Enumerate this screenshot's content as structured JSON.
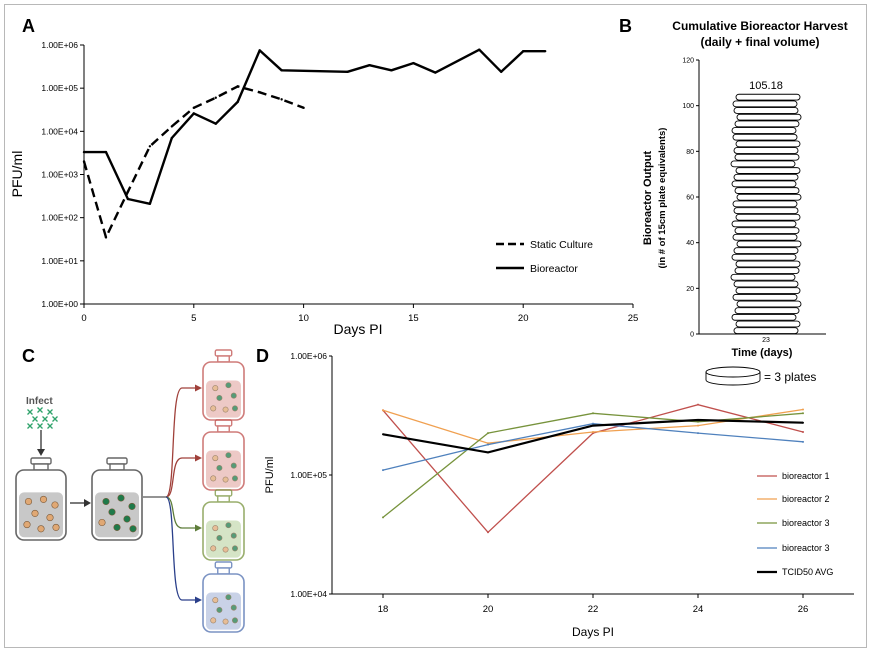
{
  "panels": {
    "a": {
      "letter": "A"
    },
    "b": {
      "letter": "B"
    },
    "c": {
      "letter": "C",
      "infect_label": "Infect"
    },
    "d": {
      "letter": "D"
    }
  },
  "colors": {
    "bioreactor_1": "#c0504d",
    "bioreactor_2": "#f0a050",
    "bioreactor_3_green": "#77933c",
    "bioreactor_3_blue": "#4f81bd",
    "tcid50_avg": "#000000",
    "cell_orange": "#e0a874",
    "cell_green": "#1e7a4a"
  },
  "chart_data": [
    {
      "type": "line",
      "panel": "A",
      "xlabel": "Days PI",
      "ylabel": "PFU/ml",
      "xlim": [
        0,
        25
      ],
      "x_ticks": [
        "0",
        "5",
        "10",
        "15",
        "20",
        "25"
      ],
      "y_scale": "log",
      "ylim": [
        1,
        1000000
      ],
      "y_ticks": [
        "1.00E+00",
        "1.00E+01",
        "1.00E+02",
        "1.00E+03",
        "1.00E+04",
        "1.00E+05",
        "1.00E+06"
      ],
      "legend_position": "bottom-right",
      "series": [
        {
          "name": "Static Culture",
          "style": "dashed",
          "x": [
            0,
            1,
            2,
            3,
            4,
            5,
            6,
            7,
            8,
            9,
            10
          ],
          "y": [
            2000,
            35,
            400,
            4500,
            13000,
            35000,
            60000,
            110000,
            80000,
            55000,
            35000
          ]
        },
        {
          "name": "Bioreactor",
          "style": "solid",
          "x": [
            0,
            1,
            2,
            3,
            4,
            5,
            6,
            7,
            8,
            9,
            12,
            13,
            14,
            15,
            16,
            18,
            19,
            20,
            21
          ],
          "y": [
            3300,
            3300,
            270,
            210,
            7000,
            26000,
            15000,
            48000,
            750000,
            260000,
            240000,
            340000,
            260000,
            380000,
            230000,
            780000,
            240000,
            720000,
            720000
          ]
        }
      ]
    },
    {
      "type": "bar",
      "panel": "B",
      "title": "Cumulative Bioreactor Harvest",
      "subtitle": "(daily + final volume)",
      "xlabel": "Time (days)",
      "ylabel": "Bioreactor Output",
      "ylabel2": "(in # of 15cm plate equivalents)",
      "categories": [
        "23"
      ],
      "values": [
        105.18
      ],
      "value_label": "105.18",
      "ylim": [
        0,
        120
      ],
      "y_ticks": [
        "0",
        "20",
        "40",
        "60",
        "80",
        "100",
        "120"
      ],
      "legend_text": "= 3 plates"
    },
    {
      "type": "line",
      "panel": "D",
      "xlabel": "Days PI",
      "ylabel": "PFU/ml",
      "categories": [
        "18",
        "20",
        "22",
        "24",
        "26"
      ],
      "y_scale": "log",
      "ylim": [
        10000,
        1000000
      ],
      "y_ticks": [
        "1.00E+04",
        "1.00E+05",
        "1.00E+06"
      ],
      "legend_position": "right",
      "series": [
        {
          "name": "bioreactor 1",
          "color": "#c0504d",
          "values": [
            350000,
            33000,
            225000,
            390000,
            230000
          ]
        },
        {
          "name": "bioreactor 2",
          "color": "#f0a050",
          "values": [
            350000,
            185000,
            230000,
            260000,
            355000
          ]
        },
        {
          "name": "bioreactor 3",
          "color": "#77933c",
          "values": [
            44000,
            225000,
            330000,
            280000,
            330000
          ]
        },
        {
          "name": "bioreactor 3",
          "color": "#4f81bd",
          "values": [
            110000,
            180000,
            270000,
            225000,
            190000
          ]
        },
        {
          "name": "TCID50 AVG",
          "color": "#000000",
          "values": [
            220000,
            155000,
            260000,
            290000,
            275000
          ]
        }
      ]
    }
  ]
}
